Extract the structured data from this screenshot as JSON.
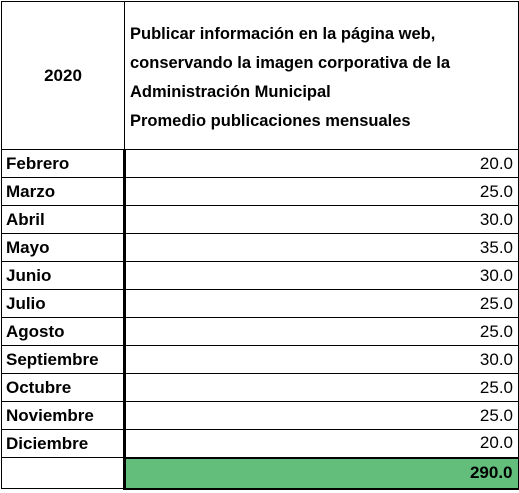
{
  "table": {
    "year": "2020",
    "title_lines": [
      "Publicar información en la página web,",
      "conservando la imagen corporativa de la",
      "Administración Municipal",
      "Promedio publicaciones mensuales"
    ],
    "rows": [
      {
        "month": "Febrero",
        "value": "20.0"
      },
      {
        "month": "Marzo",
        "value": "25.0"
      },
      {
        "month": "Abril",
        "value": "30.0"
      },
      {
        "month": "Mayo",
        "value": "35.0"
      },
      {
        "month": "Junio",
        "value": "30.0"
      },
      {
        "month": "Julio",
        "value": "25.0"
      },
      {
        "month": "Agosto",
        "value": "25.0"
      },
      {
        "month": "Septiembre",
        "value": "30.0"
      },
      {
        "month": "Octubre",
        "value": "25.0"
      },
      {
        "month": "Noviembre",
        "value": "25.0"
      },
      {
        "month": "Diciembre",
        "value": "20.0"
      }
    ],
    "total": "290.0",
    "total_fill_color": "#63be7b"
  }
}
